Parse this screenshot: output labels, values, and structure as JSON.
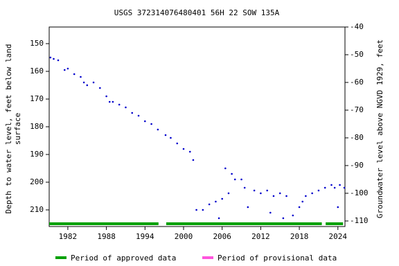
{
  "chart_data": {
    "type": "scatter",
    "title": "USGS 372314076480401 56H 22 SOW 135A",
    "ylabel": [
      "Depth to water level, feet below land",
      "surface"
    ],
    "y2label": "Groundwater level above NGVD 1929, feet",
    "xlim": [
      1979.1,
      2025.1
    ],
    "xticks": [
      1982,
      1988,
      1994,
      2000,
      2006,
      2012,
      2018,
      2024
    ],
    "ylim": [
      144,
      216
    ],
    "yinvert": true,
    "yticks": [
      150,
      160,
      170,
      180,
      190,
      200,
      210
    ],
    "y2lim": [
      -112,
      -40
    ],
    "y2ticks": [
      -40,
      -50,
      -60,
      -70,
      -80,
      -90,
      -100,
      -110
    ],
    "series": [
      {
        "color": "#0000cc",
        "x": [
          1979.3,
          1979.8,
          1980.5,
          1981.5,
          1982,
          1983,
          1984,
          1984.5,
          1985,
          1986,
          1987,
          1988,
          1988.5,
          1989,
          1990,
          1991,
          1992,
          1993,
          1994,
          1995,
          1996,
          1997.2,
          1998,
          1999,
          2000,
          2001,
          2001.5,
          2002,
          2003,
          2004,
          2005,
          2005.5,
          2006,
          2006.5,
          2007,
          2007.5,
          2008,
          2009,
          2009.5,
          2010,
          2011,
          2012,
          2013,
          2013.5,
          2014,
          2015,
          2015.5,
          2016,
          2017,
          2018,
          2018.5,
          2019,
          2020,
          2021,
          2022,
          2023,
          2023.5,
          2024,
          2024.3,
          2025
        ],
        "values": [
          155,
          155.5,
          156,
          159.5,
          159,
          161,
          162,
          164,
          165,
          164,
          166,
          169,
          171,
          171,
          172,
          173,
          175,
          176,
          178,
          179,
          181,
          183,
          184,
          186,
          188,
          189,
          192,
          210,
          210,
          208,
          207,
          213,
          206,
          195,
          204,
          197,
          199,
          199,
          202,
          209,
          203,
          204,
          203,
          211,
          205,
          204,
          213,
          205,
          212,
          209,
          207,
          205,
          204,
          203,
          202,
          201,
          202,
          209,
          201,
          202
        ]
      }
    ],
    "approved_periods": [
      [
        1979.1,
        1996.1
      ],
      [
        1997.3,
        2021.5
      ],
      [
        2022.1,
        2024.8
      ]
    ],
    "legend": [
      {
        "name": "Period of approved data",
        "color": "#00a000"
      },
      {
        "name": "Period of provisional data",
        "color": "#ff55dd"
      }
    ]
  }
}
